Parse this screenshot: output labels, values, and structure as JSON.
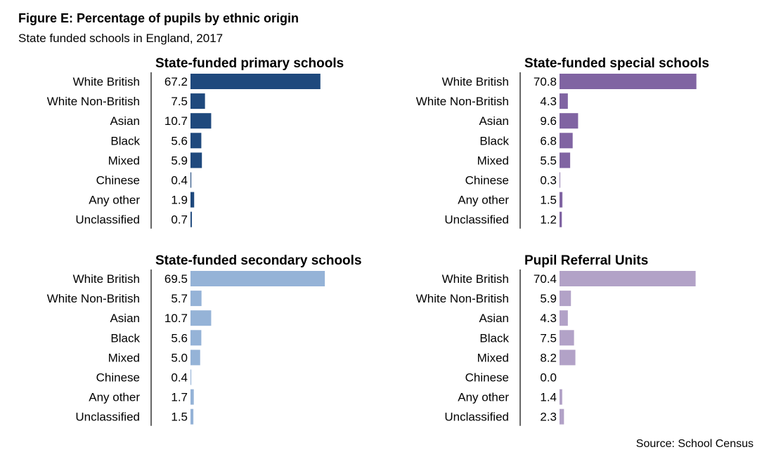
{
  "figure": {
    "title": "Figure E: Percentage of pupils by ethnic origin",
    "subtitle": "State funded schools in England, 2017",
    "source": "Source: School Census"
  },
  "chart_data": [
    {
      "type": "bar",
      "orientation": "horizontal",
      "title": "State-funded primary schools",
      "color": "#1f497d",
      "categories": [
        "White British",
        "White Non-British",
        "Asian",
        "Black",
        "Mixed",
        "Chinese",
        "Any other",
        "Unclassified"
      ],
      "values": [
        67.2,
        7.5,
        10.7,
        5.6,
        5.9,
        0.4,
        1.9,
        0.7
      ],
      "value_labels": [
        "67.2",
        "7.5",
        "10.7",
        "5.6",
        "5.9",
        "0.4",
        "1.9",
        "0.7"
      ],
      "xlim": [
        0,
        100
      ]
    },
    {
      "type": "bar",
      "orientation": "horizontal",
      "title": "State-funded special schools",
      "color": "#8064a2",
      "categories": [
        "White British",
        "White Non-British",
        "Asian",
        "Black",
        "Mixed",
        "Chinese",
        "Any other",
        "Unclassified"
      ],
      "values": [
        70.8,
        4.3,
        9.6,
        6.8,
        5.5,
        0.3,
        1.5,
        1.2
      ],
      "value_labels": [
        "70.8",
        "4.3",
        "9.6",
        "6.8",
        "5.5",
        "0.3",
        "1.5",
        "1.2"
      ],
      "xlim": [
        0,
        100
      ]
    },
    {
      "type": "bar",
      "orientation": "horizontal",
      "title": "State-funded secondary schools",
      "color": "#95b3d7",
      "categories": [
        "White British",
        "White Non-British",
        "Asian",
        "Black",
        "Mixed",
        "Chinese",
        "Any other",
        "Unclassified"
      ],
      "values": [
        69.5,
        5.7,
        10.7,
        5.6,
        5.0,
        0.4,
        1.7,
        1.5
      ],
      "value_labels": [
        "69.5",
        "5.7",
        "10.7",
        "5.6",
        "5.0",
        "0.4",
        "1.7",
        "1.5"
      ],
      "xlim": [
        0,
        100
      ]
    },
    {
      "type": "bar",
      "orientation": "horizontal",
      "title": "Pupil Referral Units",
      "color": "#b2a2c7",
      "categories": [
        "White British",
        "White Non-British",
        "Asian",
        "Black",
        "Mixed",
        "Chinese",
        "Any other",
        "Unclassified"
      ],
      "values": [
        70.4,
        5.9,
        4.3,
        7.5,
        8.2,
        0.0,
        1.4,
        2.3
      ],
      "value_labels": [
        "70.4",
        "5.9",
        "4.3",
        "7.5",
        "8.2",
        "0.0",
        "1.4",
        "2.3"
      ],
      "xlim": [
        0,
        100
      ]
    }
  ]
}
